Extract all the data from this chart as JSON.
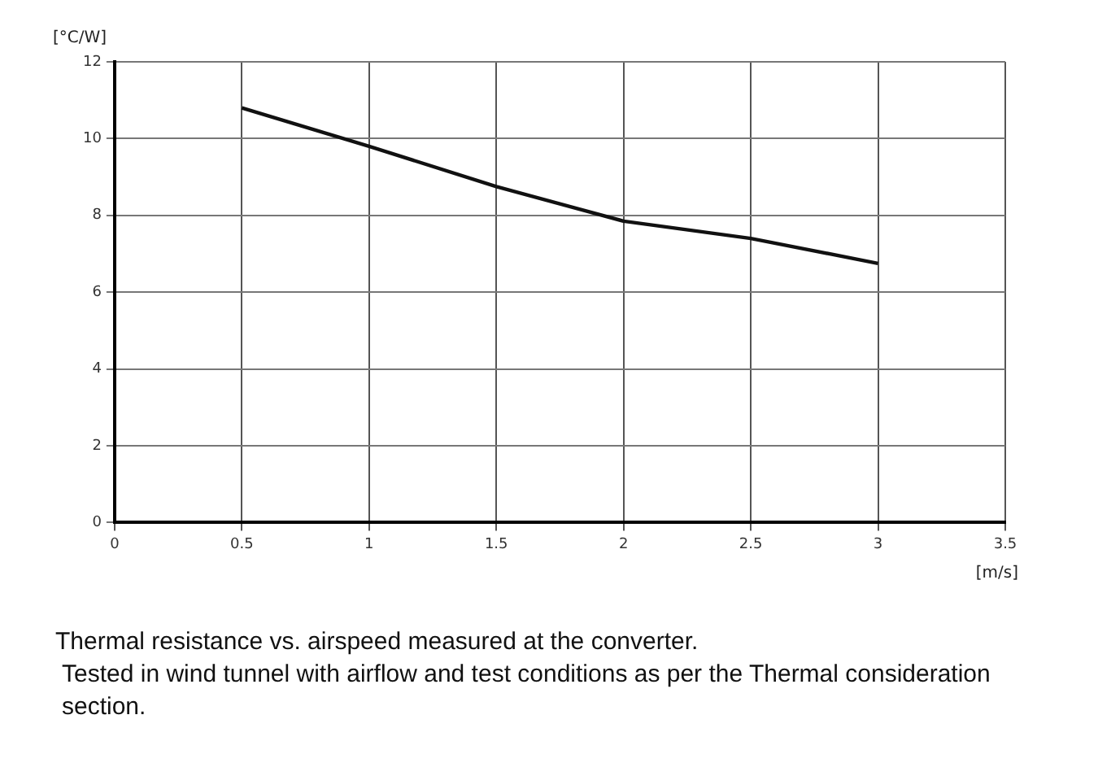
{
  "chart_data": {
    "type": "line",
    "xlabel": "[m/s]",
    "ylabel": "[°C/W]",
    "x": [
      0.5,
      1,
      1.5,
      2,
      2.5,
      3
    ],
    "series": [
      {
        "color": "#111111",
        "values": [
          10.8,
          9.8,
          8.75,
          7.85,
          7.4,
          6.75
        ]
      }
    ],
    "xlim": [
      0,
      3.5
    ],
    "xticks": [
      0,
      0.5,
      1,
      1.5,
      2,
      2.5,
      3,
      3.5
    ],
    "ylim": [
      0,
      12
    ],
    "yticks": [
      0,
      2,
      4,
      6,
      8,
      10,
      12
    ],
    "grid": true,
    "legend": false,
    "marker": "none",
    "line_style": "solid",
    "annotations": [
      "Thermal resistance vs. airspeed measured at the converter.",
      "Tested in wind tunnel with airflow and test conditions as per the Thermal consideration section."
    ]
  }
}
